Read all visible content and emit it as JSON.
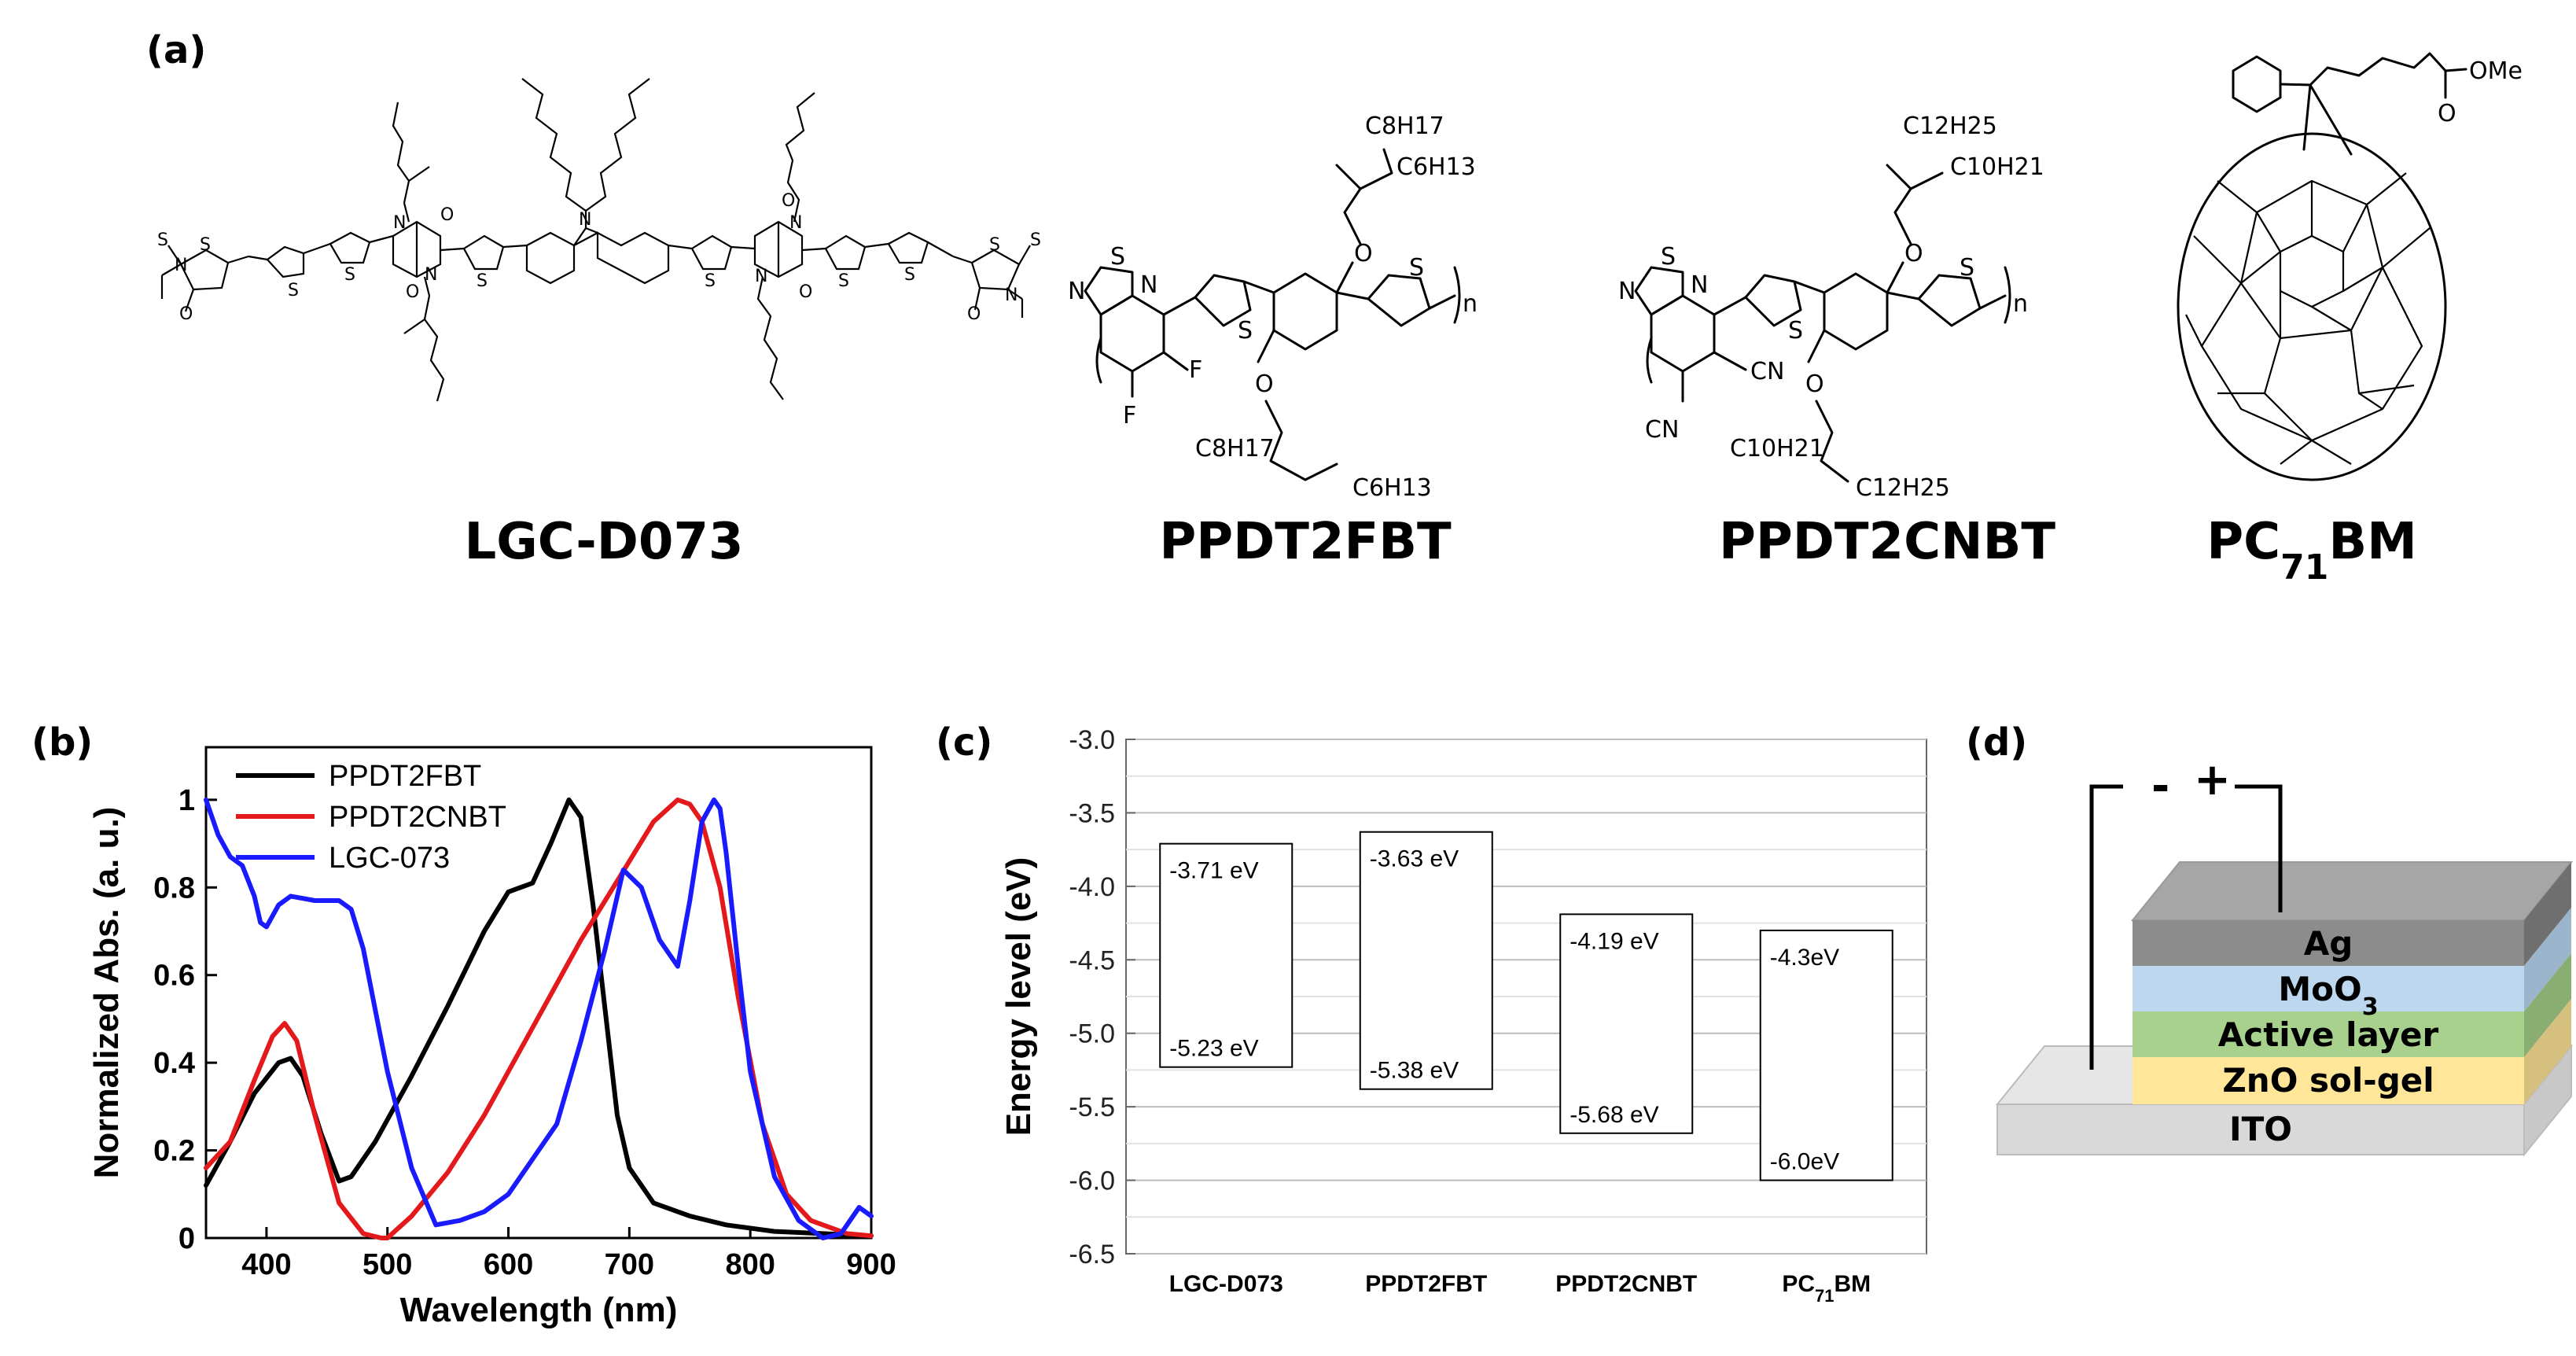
{
  "panels": {
    "a": "(a)",
    "b": "(b)",
    "c": "(c)",
    "d": "(d)"
  },
  "molecules": {
    "m1": {
      "name": "LGC-D073"
    },
    "m2": {
      "name": "PPDT2FBT",
      "chain_top": "C8H17",
      "chain_top2": "C6H13",
      "chain_bot": "C8H17",
      "chain_bot2": "C6H13",
      "sub": "F"
    },
    "m3": {
      "name": "PPDT2CNBT",
      "chain_top": "C12H25",
      "chain_top2": "C10H21",
      "chain_bot": "C10H21",
      "chain_bot2": "C12H25",
      "sub": "CN"
    },
    "m4": {
      "name_main": "PC",
      "name_sub": "71",
      "name_end": "BM",
      "ester": "OMe"
    },
    "atoms": {
      "S": "S",
      "N": "N",
      "O": "O",
      "n": "n"
    }
  },
  "chart_data": [
    {
      "type": "line",
      "panel": "b",
      "title": "",
      "xlabel": "Wavelength (nm)",
      "ylabel": "Normalized Abs. (a. u.)",
      "xlim": [
        350,
        900
      ],
      "ylim": [
        0,
        1.12
      ],
      "xticks": [
        400,
        500,
        600,
        700,
        800,
        900
      ],
      "yticks": [
        0,
        0.2,
        0.4,
        0.6,
        0.8,
        1
      ],
      "ytick_labels": [
        "0",
        "0.2",
        "0.4",
        "0.6",
        "0.8",
        "1"
      ],
      "legend_position": "top-left",
      "series": [
        {
          "name": "PPDT2FBT",
          "color": "#000000",
          "x": [
            350,
            370,
            390,
            410,
            420,
            430,
            445,
            460,
            470,
            490,
            520,
            550,
            580,
            600,
            620,
            635,
            650,
            660,
            670,
            680,
            690,
            700,
            720,
            750,
            780,
            820,
            860,
            900
          ],
          "y": [
            0.12,
            0.22,
            0.33,
            0.4,
            0.41,
            0.37,
            0.24,
            0.13,
            0.14,
            0.22,
            0.37,
            0.53,
            0.7,
            0.79,
            0.81,
            0.9,
            1.0,
            0.96,
            0.76,
            0.52,
            0.28,
            0.16,
            0.08,
            0.05,
            0.03,
            0.015,
            0.01,
            0.005
          ]
        },
        {
          "name": "PPDT2CNBT",
          "color": "#e3191c",
          "x": [
            350,
            370,
            390,
            405,
            415,
            425,
            440,
            460,
            480,
            495,
            500,
            520,
            550,
            580,
            620,
            660,
            700,
            720,
            740,
            750,
            760,
            775,
            790,
            810,
            830,
            850,
            880,
            900
          ],
          "y": [
            0.16,
            0.22,
            0.36,
            0.46,
            0.49,
            0.45,
            0.28,
            0.08,
            0.01,
            0.0,
            0.0,
            0.05,
            0.15,
            0.28,
            0.48,
            0.68,
            0.86,
            0.95,
            1.0,
            0.99,
            0.95,
            0.8,
            0.55,
            0.26,
            0.1,
            0.04,
            0.01,
            0.005
          ]
        },
        {
          "name": "LGC-073",
          "color": "#1a1aff",
          "x": [
            350,
            360,
            370,
            380,
            390,
            395,
            400,
            410,
            420,
            440,
            460,
            470,
            480,
            490,
            500,
            520,
            540,
            560,
            580,
            600,
            620,
            640,
            660,
            680,
            695,
            710,
            725,
            740,
            750,
            760,
            770,
            775,
            780,
            790,
            800,
            820,
            840,
            860,
            875,
            890,
            900
          ],
          "y": [
            1.0,
            0.92,
            0.87,
            0.85,
            0.78,
            0.72,
            0.71,
            0.76,
            0.78,
            0.77,
            0.77,
            0.75,
            0.66,
            0.52,
            0.38,
            0.16,
            0.03,
            0.04,
            0.06,
            0.1,
            0.18,
            0.26,
            0.45,
            0.66,
            0.84,
            0.8,
            0.68,
            0.62,
            0.77,
            0.95,
            1.0,
            0.98,
            0.88,
            0.62,
            0.38,
            0.14,
            0.04,
            0.0,
            0.01,
            0.07,
            0.05
          ]
        }
      ]
    },
    {
      "type": "bar",
      "panel": "c",
      "title": "",
      "xlabel": "",
      "ylabel": "Energy level (eV)",
      "ylim": [
        -6.5,
        -3.0
      ],
      "yticks": [
        -3.0,
        -3.5,
        -4.0,
        -4.5,
        -5.0,
        -5.5,
        -6.0,
        -6.5
      ],
      "ytick_labels": [
        "-3.0",
        "-3.5",
        "-4.0",
        "-4.5",
        "-5.0",
        "-5.5",
        "-6.0",
        "-6.5"
      ],
      "grid": true,
      "categories": [
        "LGC-D073",
        "PPDT2FBT",
        "PPDT2CNBT",
        "PC71BM"
      ],
      "category_labels": [
        {
          "main": "LGC-D073",
          "sub": "",
          "end": ""
        },
        {
          "main": "PPDT2FBT",
          "sub": "",
          "end": ""
        },
        {
          "main": "PPDT2CNBT",
          "sub": "",
          "end": ""
        },
        {
          "main": "PC",
          "sub": "71",
          "end": "BM"
        }
      ],
      "lumo": [
        -3.71,
        -3.63,
        -4.19,
        -4.3
      ],
      "homo": [
        -5.23,
        -5.38,
        -5.68,
        -6.0
      ],
      "lumo_labels": [
        "-3.71 eV",
        "-3.63 eV",
        "-4.19 eV",
        "-4.3eV"
      ],
      "homo_labels": [
        "-5.23 eV",
        "-5.38 eV",
        "-5.68 eV",
        "-6.0eV"
      ]
    }
  ],
  "device": {
    "polarity_minus": "-",
    "polarity_plus": "+",
    "layers": [
      {
        "label": "Ag",
        "sub": "",
        "color": "#8c8c8c"
      },
      {
        "label": "MoO",
        "sub": "3",
        "color": "#bdd7ee"
      },
      {
        "label": "Active layer",
        "sub": "",
        "color": "#a9d18e"
      },
      {
        "label": "ZnO sol-gel",
        "sub": "",
        "color": "#ffe699"
      },
      {
        "label": "ITO",
        "sub": "",
        "color": "#d9d9d9"
      }
    ]
  }
}
